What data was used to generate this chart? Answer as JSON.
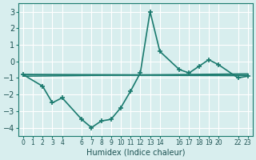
{
  "xlabel": "Humidex (Indice chaleur)",
  "ylabel": "",
  "bg_color": "#d8eeee",
  "grid_color": "#ffffff",
  "line_color": "#1a7a6e",
  "xlim": [
    -0.5,
    23.5
  ],
  "ylim": [
    -4.5,
    3.5
  ],
  "yticks": [
    -4,
    -3,
    -2,
    -1,
    0,
    1,
    2,
    3
  ],
  "xtick_pos": [
    0,
    1,
    2,
    3,
    4,
    6,
    7,
    8,
    9,
    10,
    11,
    12,
    13,
    14,
    16,
    17,
    18,
    19,
    20,
    22,
    23
  ],
  "xtick_labels": [
    "0",
    "1",
    "2",
    "3",
    "4",
    "6",
    "7",
    "8",
    "9",
    "10",
    "11",
    "12",
    "13",
    "14",
    "16",
    "17",
    "18",
    "19",
    "20",
    "22",
    "23"
  ],
  "series": [
    {
      "x": [
        0,
        2,
        3,
        4,
        6,
        7,
        8,
        9,
        10,
        11,
        12,
        13,
        14,
        16,
        17,
        18,
        19,
        20,
        22,
        23
      ],
      "y": [
        -0.8,
        -1.5,
        -2.5,
        -2.2,
        -3.5,
        -4.0,
        -3.6,
        -3.5,
        -2.8,
        -1.8,
        -0.7,
        3.0,
        0.6,
        -0.5,
        -0.7,
        -0.3,
        0.1,
        -0.2,
        -1.0,
        -0.9
      ],
      "style": "-",
      "marker": "+",
      "lw": 1.2
    },
    {
      "x": [
        0,
        23
      ],
      "y": [
        -0.8,
        -0.85
      ],
      "style": "-",
      "marker": null,
      "lw": 1.5
    },
    {
      "x": [
        0,
        23
      ],
      "y": [
        -0.9,
        -0.75
      ],
      "style": "-",
      "marker": null,
      "lw": 1.0
    }
  ]
}
